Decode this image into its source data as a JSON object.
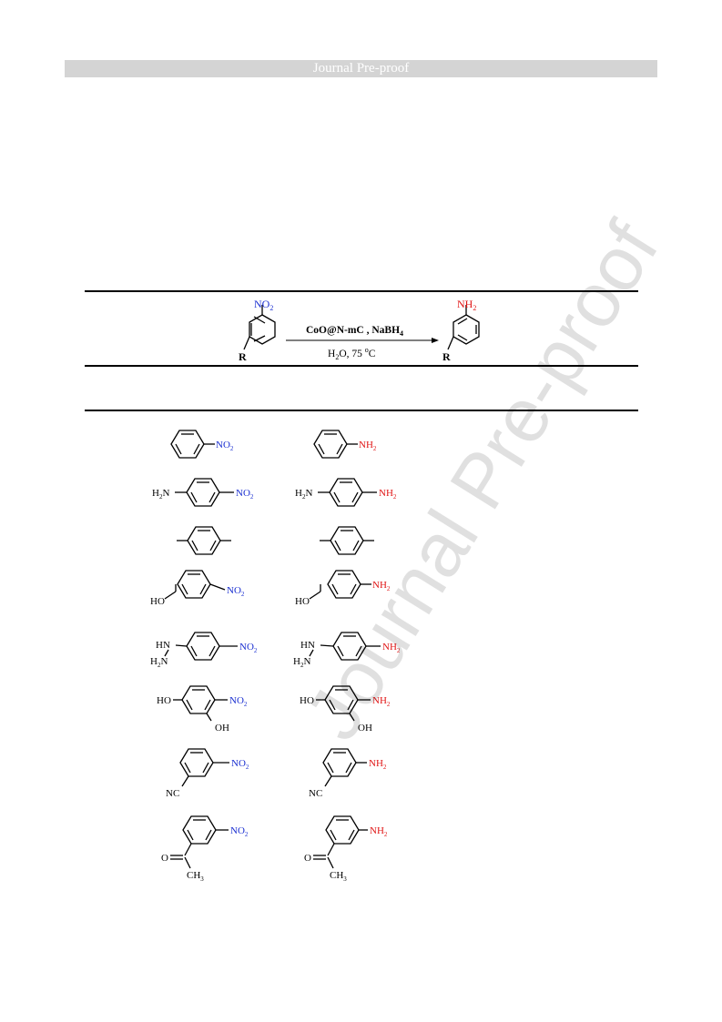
{
  "header": {
    "banner_text": "Journal Pre-proof"
  },
  "watermark": "Journal Pre-proof",
  "scheme": {
    "reactant_group": "NO",
    "reactant_sub": "2",
    "product_group": "NH",
    "product_sub": "2",
    "substituent": "R",
    "reagent_top": "CoO@N-mC , NaBH",
    "reagent_top_sub": "4",
    "reagent_bottom_a": "H",
    "reagent_bottom_sub": "2",
    "reagent_bottom_b": "O, 75 ",
    "reagent_bottom_sup": "o",
    "reagent_bottom_c": "C"
  },
  "labels": {
    "no2": "NO",
    "nh2": "NH",
    "two": "2",
    "h2n": "H",
    "hn": "HN",
    "ho": "HO",
    "oh": "OH",
    "nc": "NC",
    "o_eq": "O",
    "ch3": "CH",
    "three": "3"
  },
  "colors": {
    "nitro": "#1a2fd1",
    "amine": "#e01414",
    "banner": "#d4d4d4"
  }
}
